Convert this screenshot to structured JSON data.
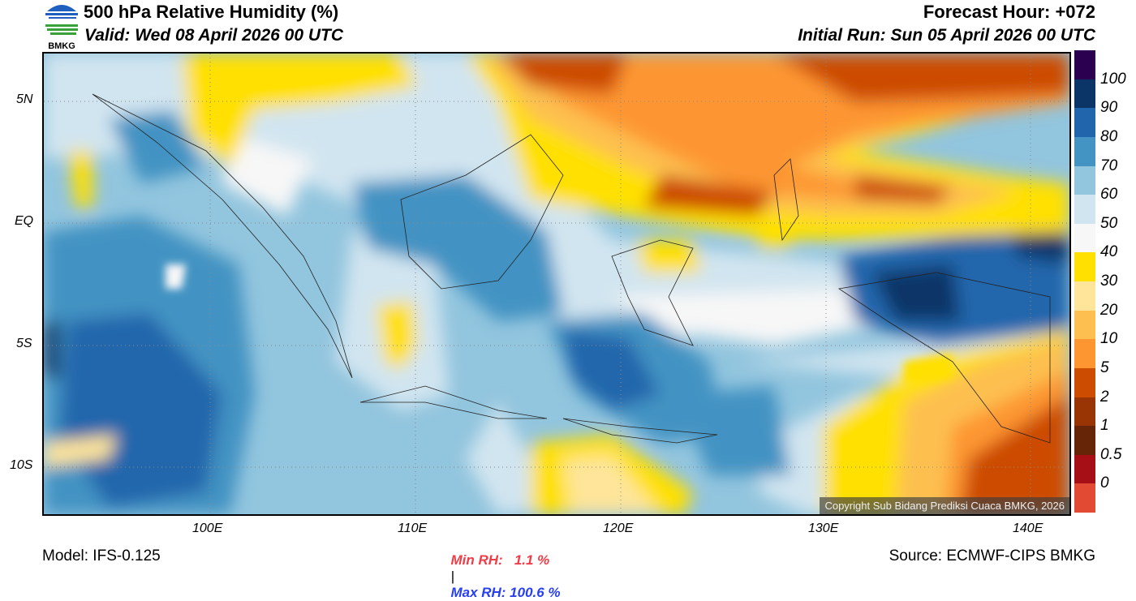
{
  "header": {
    "title": "500 hPa Relative Humidity (%)",
    "valid": "Valid: Wed 08 April 2026 00 UTC",
    "forecast_hour": "Forecast Hour: +072",
    "initial_run": "Initial Run: Sun 05 April 2026 00 UTC",
    "logo_text": "BMKG"
  },
  "axes": {
    "lat_ticks": [
      "5N",
      "EQ",
      "5S",
      "10S"
    ],
    "lon_ticks": [
      "100E",
      "110E",
      "120E",
      "130E",
      "140E"
    ]
  },
  "colorbar": {
    "labels": [
      "100",
      "90",
      "80",
      "70",
      "60",
      "50",
      "40",
      "30",
      "20",
      "10",
      "5",
      "2",
      "1",
      "0.5",
      "0"
    ],
    "colors": [
      "#2b0050",
      "#0c3567",
      "#2166ac",
      "#4393c3",
      "#92c5de",
      "#d1e5f0",
      "#f7f7f7",
      "#ffe000",
      "#fee59a",
      "#fdc050",
      "#fd9630",
      "#cc4c02",
      "#993404",
      "#662506",
      "#a50f15",
      "#e34a33"
    ]
  },
  "stats": {
    "min": "Min RH:   1.1 %",
    "sep": "|",
    "max": "Max RH: 100.6 %"
  },
  "footer": {
    "model": "Model: IFS-0.125",
    "source": "Source: ECMWF-CIPS BMKG",
    "copyright": "Copyright Sub Bidang Prediksi Cuaca BMKG, 2026"
  }
}
